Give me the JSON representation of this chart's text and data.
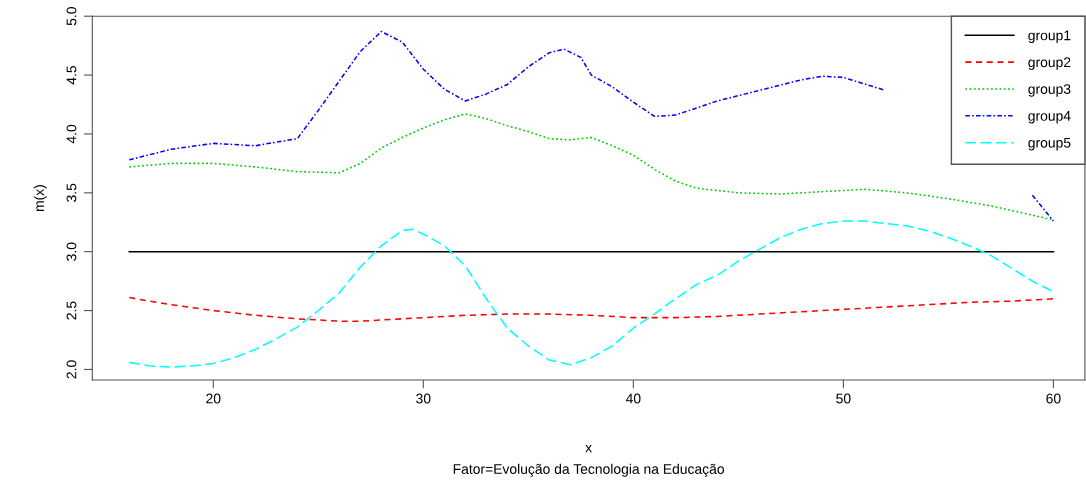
{
  "chart_data": {
    "type": "line",
    "xlabel": "x",
    "ylabel": "m(x)",
    "subtitle": "Fator=Evolução da Tecnologia na Educação",
    "xlim": [
      14.24,
      61.5
    ],
    "xticks": [
      20,
      30,
      40,
      50,
      60
    ],
    "ylim": [
      1.91,
      5.0
    ],
    "yticks": [
      {
        "value": 2,
        "label": "2.0"
      },
      {
        "value": 2.5,
        "label": "2.5"
      },
      {
        "value": 3,
        "label": "3.0"
      },
      {
        "value": 3.5,
        "label": "3.5"
      },
      {
        "value": 4,
        "label": "4.0"
      },
      {
        "value": 4.5,
        "label": "4.5"
      },
      {
        "value": 5,
        "label": "5.0"
      }
    ],
    "grid": false,
    "legend": "top right",
    "marker": "none",
    "series": [
      {
        "name": "group1",
        "color": "#000000",
        "line_style": "solid",
        "x": [
          16,
          60
        ],
        "values": [
          3.0,
          3.0
        ]
      },
      {
        "name": "group2",
        "color": "#ff0000",
        "line_style": "dashed",
        "x": [
          16,
          18,
          20,
          22,
          24,
          26,
          27,
          28,
          30,
          32,
          34,
          36,
          38,
          40,
          42,
          44,
          46,
          48,
          50,
          52,
          54,
          56,
          58,
          60
        ],
        "values": [
          2.61,
          2.55,
          2.5,
          2.46,
          2.43,
          2.41,
          2.41,
          2.42,
          2.44,
          2.46,
          2.47,
          2.47,
          2.46,
          2.44,
          2.44,
          2.45,
          2.47,
          2.49,
          2.51,
          2.53,
          2.55,
          2.57,
          2.58,
          2.6
        ]
      },
      {
        "name": "group3",
        "color": "#00cd00",
        "line_style": "dotted",
        "x": [
          16,
          18,
          20,
          22,
          24,
          26,
          27,
          28,
          29,
          30,
          31,
          32,
          33,
          34,
          35,
          36,
          37,
          38,
          39,
          40,
          41,
          42,
          43,
          45,
          47,
          49,
          51,
          53,
          55,
          57,
          59,
          60
        ],
        "values": [
          3.72,
          3.75,
          3.75,
          3.72,
          3.68,
          3.67,
          3.75,
          3.88,
          3.97,
          4.05,
          4.12,
          4.17,
          4.13,
          4.07,
          4.02,
          3.96,
          3.95,
          3.97,
          3.9,
          3.82,
          3.7,
          3.6,
          3.54,
          3.5,
          3.49,
          3.51,
          3.53,
          3.5,
          3.45,
          3.39,
          3.31,
          3.27
        ]
      },
      {
        "name": "group4",
        "color": "#0000ff",
        "line_style": "dashdot",
        "x": [
          16,
          18,
          20,
          22,
          24,
          25,
          26,
          27,
          28,
          29,
          30,
          31,
          32,
          33,
          34,
          35,
          36,
          36.7,
          37.5,
          38,
          39,
          40,
          41,
          42,
          44,
          46,
          48,
          49,
          50,
          52,
          53,
          58,
          59,
          60
        ],
        "values": [
          3.78,
          3.87,
          3.92,
          3.9,
          3.96,
          4.2,
          4.45,
          4.7,
          4.87,
          4.78,
          4.55,
          4.38,
          4.28,
          4.34,
          4.42,
          4.57,
          4.69,
          4.72,
          4.65,
          4.5,
          4.4,
          4.27,
          4.15,
          4.16,
          4.28,
          4.37,
          4.46,
          4.49,
          4.48,
          4.37,
          null,
          null,
          3.48,
          3.26
        ]
      },
      {
        "name": "group5",
        "color": "#00ffff",
        "line_style": "longdash",
        "x": [
          16,
          17,
          18,
          19,
          20,
          21,
          22,
          23,
          24,
          25,
          26,
          27,
          28,
          29,
          29.5,
          30,
          31,
          32,
          33,
          34,
          35,
          36,
          37,
          38,
          39,
          40,
          41,
          42,
          43,
          44,
          45,
          46,
          47,
          48,
          49,
          50,
          51,
          52,
          53,
          54,
          55,
          56,
          57,
          58,
          59,
          60
        ],
        "values": [
          2.06,
          2.03,
          2.02,
          2.03,
          2.05,
          2.1,
          2.17,
          2.26,
          2.36,
          2.5,
          2.65,
          2.87,
          3.05,
          3.18,
          3.19,
          3.15,
          3.05,
          2.88,
          2.6,
          2.35,
          2.2,
          2.08,
          2.04,
          2.1,
          2.2,
          2.35,
          2.47,
          2.6,
          2.72,
          2.8,
          2.92,
          3.02,
          3.12,
          3.19,
          3.24,
          3.26,
          3.26,
          3.24,
          3.22,
          3.18,
          3.12,
          3.05,
          2.97,
          2.86,
          2.75,
          2.66
        ]
      }
    ]
  }
}
